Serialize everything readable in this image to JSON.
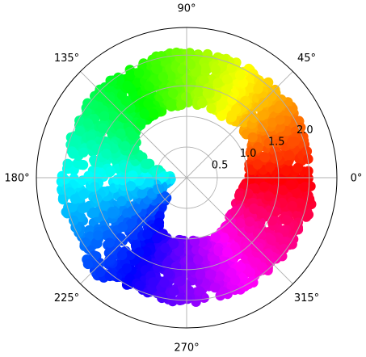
{
  "chart_data": {
    "type": "scatter",
    "projection": "polar",
    "title": "",
    "xlabel": "",
    "ylabel": "",
    "theta_unit": "degrees",
    "theta_ticks": [
      "0°",
      "45°",
      "90°",
      "135°",
      "180°",
      "225°",
      "270°",
      "315°"
    ],
    "r_ticks": [
      "0.5",
      "1.0",
      "1.5",
      "2.0"
    ],
    "r_tick_values": [
      0.5,
      1.0,
      1.5,
      2.0
    ],
    "rlim": [
      0,
      2.45
    ],
    "grid": true,
    "colormap": "hsv (hue follows angle)",
    "series": [
      {
        "marker": "filled circles",
        "description_points": "annular band of points, angle 0-360 deg, radius mostly between ~0.9 and ~2.1",
        "band": [
          {
            "theta": 0,
            "r_inner": 1.0,
            "r_outer": 2.05
          },
          {
            "theta": 15,
            "r_inner": 1.05,
            "r_outer": 2.0
          },
          {
            "theta": 30,
            "r_inner": 1.2,
            "r_outer": 2.1
          },
          {
            "theta": 45,
            "r_inner": 1.2,
            "r_outer": 2.05
          },
          {
            "theta": 60,
            "r_inner": 1.15,
            "r_outer": 2.05
          },
          {
            "theta": 75,
            "r_inner": 1.2,
            "r_outer": 2.05
          },
          {
            "theta": 90,
            "r_inner": 1.2,
            "r_outer": 2.05
          },
          {
            "theta": 105,
            "r_inner": 1.15,
            "r_outer": 2.05
          },
          {
            "theta": 120,
            "r_inner": 1.15,
            "r_outer": 2.0
          },
          {
            "theta": 135,
            "r_inner": 1.1,
            "r_outer": 2.05
          },
          {
            "theta": 150,
            "r_inner": 0.95,
            "r_outer": 2.0
          },
          {
            "theta": 165,
            "r_inner": 0.4,
            "r_outer": 2.0
          },
          {
            "theta": 180,
            "r_inner": 0.2,
            "r_outer": 2.05
          },
          {
            "theta": 195,
            "r_inner": 0.3,
            "r_outer": 2.05
          },
          {
            "theta": 210,
            "r_inner": 0.5,
            "r_outer": 2.0
          },
          {
            "theta": 225,
            "r_inner": 0.45,
            "r_outer": 2.2
          },
          {
            "theta": 240,
            "r_inner": 0.9,
            "r_outer": 2.0
          },
          {
            "theta": 255,
            "r_inner": 1.05,
            "r_outer": 2.0
          },
          {
            "theta": 270,
            "r_inner": 1.0,
            "r_outer": 2.05
          },
          {
            "theta": 285,
            "r_inner": 1.05,
            "r_outer": 2.0
          },
          {
            "theta": 300,
            "r_inner": 1.05,
            "r_outer": 2.05
          },
          {
            "theta": 315,
            "r_inner": 0.95,
            "r_outer": 2.0
          },
          {
            "theta": 330,
            "r_inner": 0.9,
            "r_outer": 2.05
          },
          {
            "theta": 345,
            "r_inner": 0.9,
            "r_outer": 2.1
          },
          {
            "theta": 360,
            "r_inner": 1.0,
            "r_outer": 2.05
          }
        ]
      }
    ]
  }
}
